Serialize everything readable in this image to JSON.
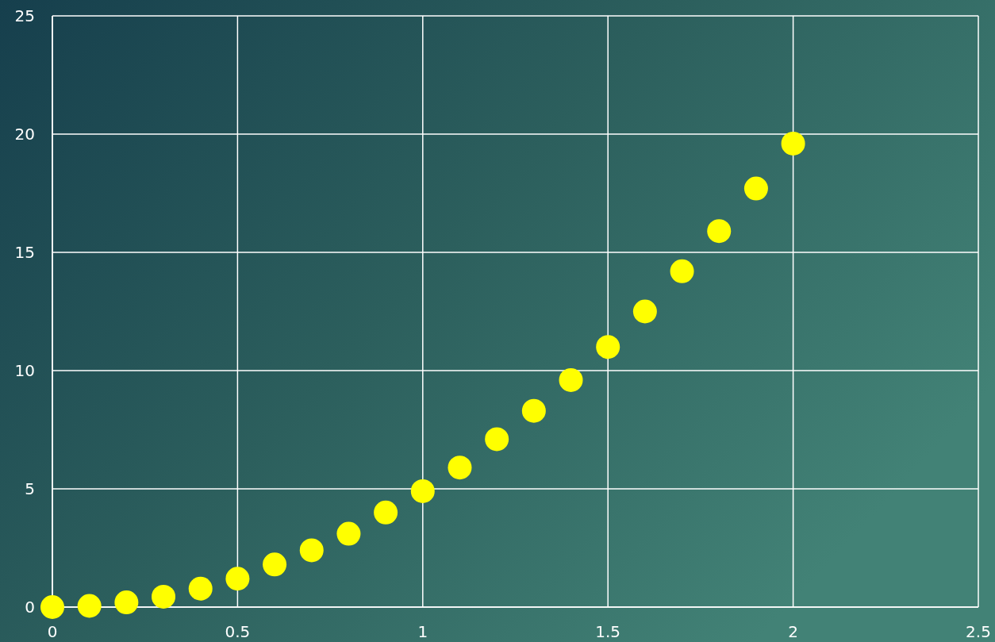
{
  "chart_data": {
    "type": "scatter",
    "x": [
      0,
      0.1,
      0.2,
      0.3,
      0.4,
      0.5,
      0.6,
      0.7,
      0.8,
      0.9,
      1,
      1.1,
      1.2,
      1.3,
      1.4,
      1.5,
      1.6,
      1.7,
      1.8,
      1.9,
      2
    ],
    "series": [
      {
        "color": "#ffff00",
        "values": [
          0,
          0.05,
          0.2,
          0.44,
          0.78,
          1.2,
          1.8,
          2.4,
          3.1,
          4.0,
          4.9,
          5.9,
          7.1,
          8.3,
          9.6,
          11.0,
          12.5,
          14.2,
          15.9,
          17.7,
          19.6
        ]
      }
    ],
    "xlim": [
      0,
      2.5
    ],
    "xticks": [
      0,
      0.5,
      1,
      1.5,
      2,
      2.5
    ],
    "ylim": [
      0,
      25
    ],
    "yticks": [
      0,
      5,
      10,
      15,
      20,
      25
    ],
    "grid": true,
    "marker": "circle"
  }
}
